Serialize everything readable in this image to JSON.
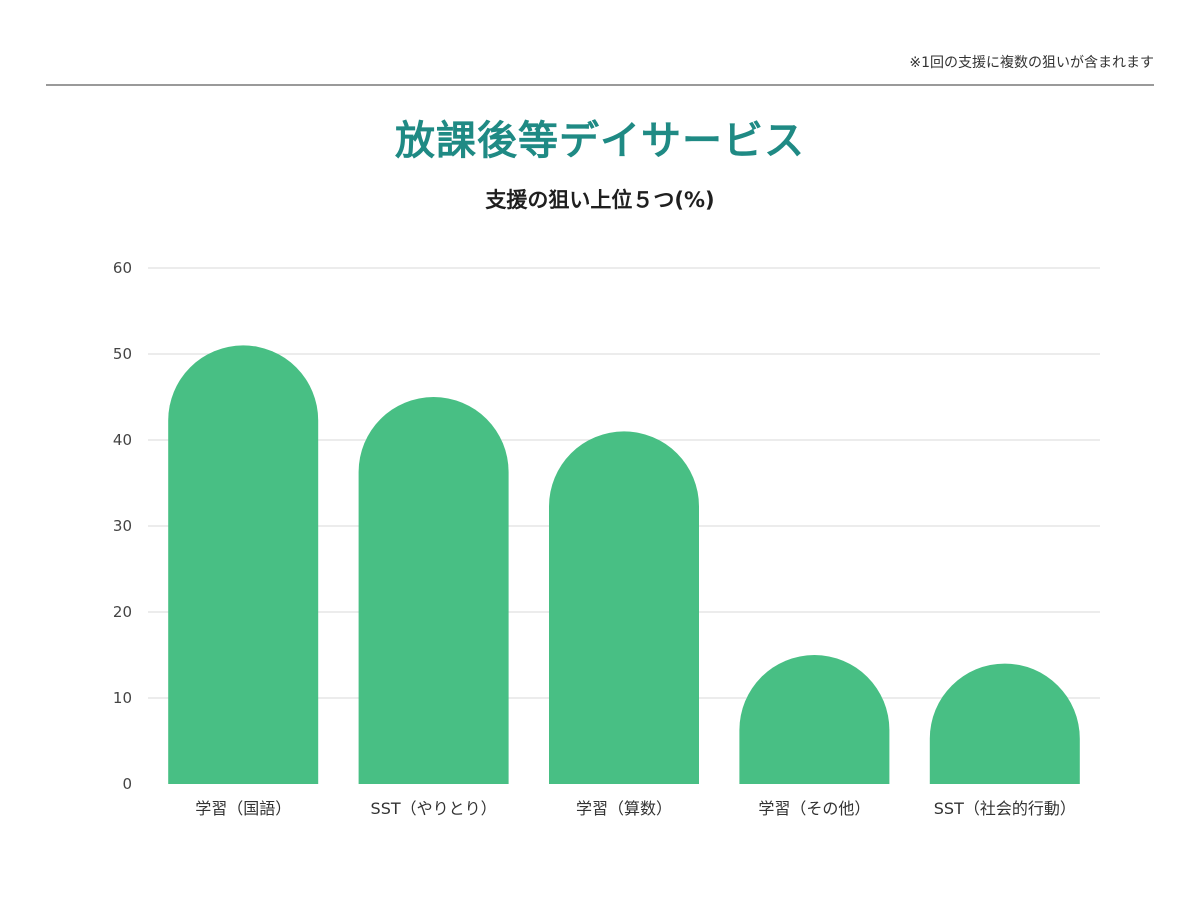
{
  "header": {
    "note": "※1回の支援に複数の狙いが含まれます",
    "title": "放課後等デイサービス",
    "subtitle": "支援の狙い上位５つ(%)"
  },
  "colors": {
    "title": "#1f8a84",
    "bar": "#48bf84",
    "grid": "#e6e6e6",
    "rule": "#9a9a9a"
  },
  "chart_data": {
    "type": "bar",
    "title": "支援の狙い上位５つ(%)",
    "categories": [
      "学習（国語）",
      "SST（やりとり）",
      "学習（算数）",
      "学習（その他）",
      "SST（社会的行動）"
    ],
    "values": [
      51,
      45,
      41,
      15,
      14
    ],
    "y_ticks": [
      0,
      10,
      20,
      30,
      40,
      50,
      60
    ],
    "ylim": [
      0,
      60
    ],
    "xlabel": "",
    "ylabel": "",
    "grid": true,
    "legend": "none",
    "bar_shape": "rounded-top"
  }
}
